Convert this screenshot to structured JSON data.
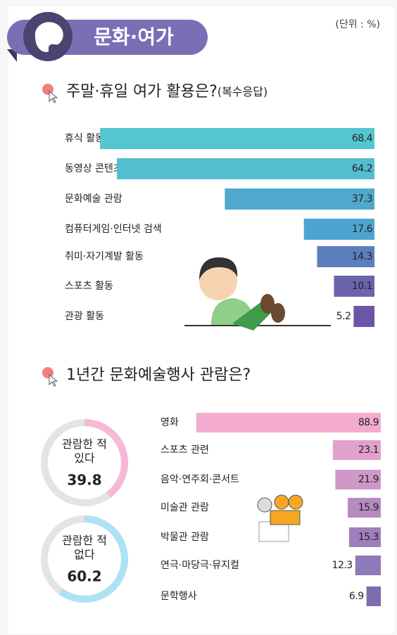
{
  "header": {
    "title": "문화·여가",
    "unit": "(단위 : %)"
  },
  "chart_data": [
    {
      "type": "hbar",
      "title": "주말·휴일 여가 활용은?",
      "subtitle": "(복수응답)",
      "categories": [
        "휴식 활동",
        "동영상 콘텐츠 시청",
        "문화예술 관람",
        "컴퓨터게임·인터넷 검색",
        "취미·자기계발 활동",
        "스포츠 활동",
        "관광 활동"
      ],
      "values": [
        68.4,
        64.2,
        37.3,
        17.6,
        14.3,
        10.1,
        5.2
      ],
      "colors": [
        "#55c6cf",
        "#53bed0",
        "#4fa9cc",
        "#4ea4d0",
        "#5a7fbb",
        "#6b63ab",
        "#6a55a6"
      ]
    },
    {
      "type": "hbar",
      "title": "1년간 문화예술행사 관람은?",
      "categories": [
        "영화",
        "스포츠 관련",
        "음악·연주회·콘서트",
        "미술관 관람",
        "박물관 관람",
        "연극·마당극·뮤지컬",
        "문학행사"
      ],
      "values": [
        88.9,
        23.1,
        21.9,
        15.9,
        15.3,
        12.3,
        6.9
      ],
      "colors": [
        "#f3abd0",
        "#e2a0cc",
        "#cf98c8",
        "#b68ac0",
        "#9f7fbb",
        "#8f7ab9",
        "#7c6db1"
      ]
    },
    {
      "type": "donut",
      "categories": [
        "관람한 적 있다",
        "관람한 적 없다"
      ],
      "values": [
        39.8,
        60.2
      ],
      "colors": [
        "#f6b9d5",
        "#aee1f5"
      ]
    }
  ]
}
